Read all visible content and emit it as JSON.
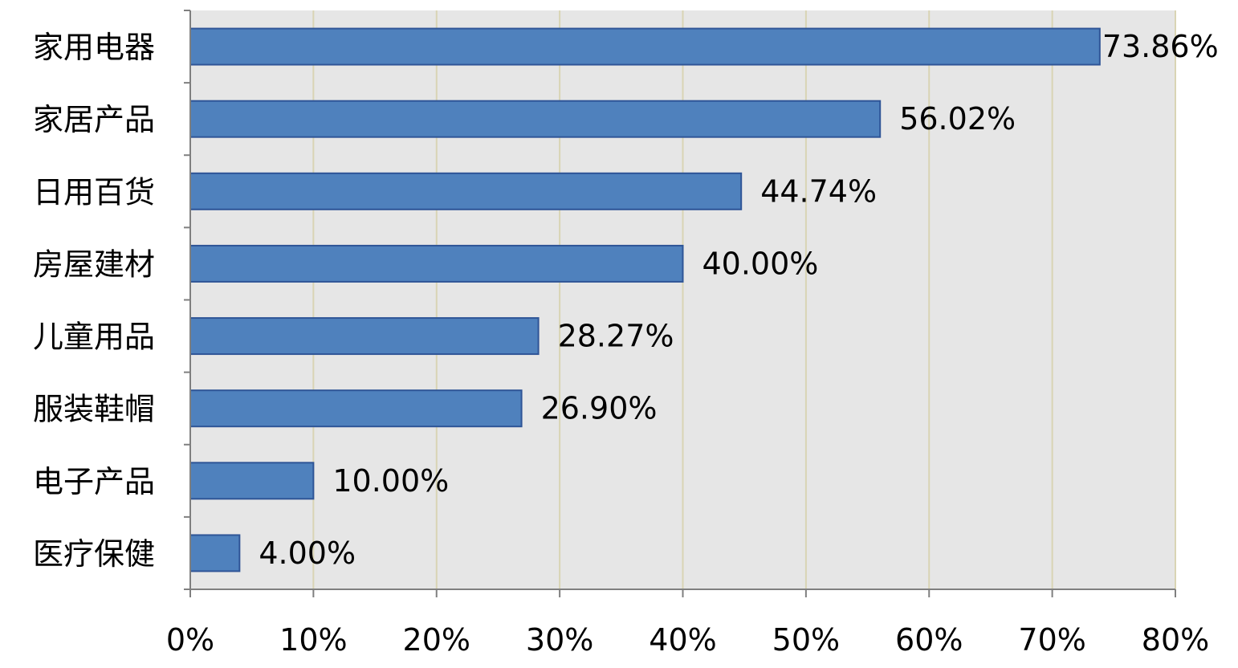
{
  "chart_data": {
    "type": "bar",
    "orientation": "horizontal",
    "title": "",
    "xlabel": "",
    "ylabel": "",
    "categories": [
      "家用电器",
      "家居产品",
      "日用百货",
      "房屋建材",
      "儿童用品",
      "服装鞋帽",
      "电子产品",
      "医疗保健"
    ],
    "values": [
      73.86,
      56.02,
      44.74,
      40.0,
      28.27,
      26.9,
      10.0,
      4.0
    ],
    "value_labels": [
      "73.86%",
      "56.02%",
      "44.74%",
      "40.00%",
      "28.27%",
      "26.90%",
      "10.00%",
      "4.00%"
    ],
    "xlim": [
      0,
      80
    ],
    "x_ticks": [
      0,
      10,
      20,
      30,
      40,
      50,
      60,
      70,
      80
    ],
    "x_tick_labels": [
      "0%",
      "10%",
      "20%",
      "30%",
      "40%",
      "50%",
      "60%",
      "70%",
      "80%"
    ],
    "grid": true,
    "legend": "none",
    "colors": {
      "bar_fill": "#4f81bd",
      "bar_stroke": "#2f5597",
      "plot_background": "#e6e6e6",
      "grid": "#d9d4b4",
      "axis": "#7f7f7f"
    }
  }
}
